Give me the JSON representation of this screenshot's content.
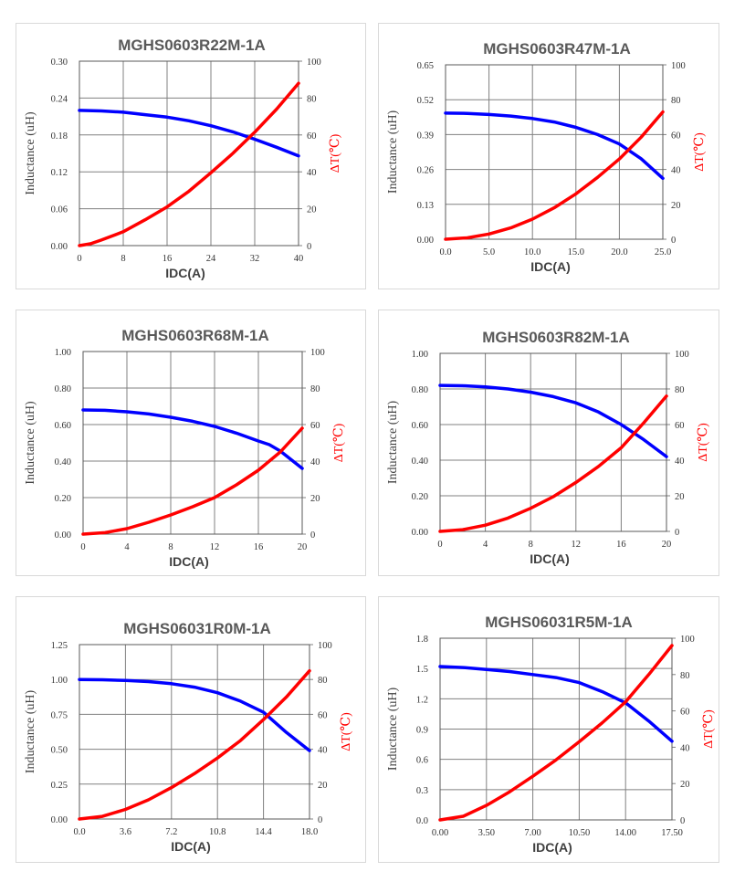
{
  "chart_data": [
    {
      "type": "line",
      "title": "MGHS0603R22M-1A",
      "xlabel": "IDC(A)",
      "ylabel": "Inductance (uH)",
      "y2label": "ΔT(℃)",
      "xlim": [
        0,
        40
      ],
      "x_ticks": [
        "0",
        "8",
        "16",
        "24",
        "32",
        "40"
      ],
      "ylim": [
        0,
        0.3
      ],
      "y_ticks": [
        "0.00",
        "0.06",
        "0.12",
        "0.18",
        "0.24",
        "0.30"
      ],
      "y2lim": [
        0,
        100
      ],
      "y2_ticks": [
        "0",
        "20",
        "40",
        "60",
        "80",
        "100"
      ],
      "series": [
        {
          "name": "Inductance",
          "axis": "left",
          "color": "#0000ff",
          "x": [
            0,
            4,
            8,
            12,
            16,
            20,
            24,
            28,
            32,
            36,
            40
          ],
          "y": [
            0.22,
            0.219,
            0.217,
            0.213,
            0.209,
            0.203,
            0.195,
            0.185,
            0.173,
            0.16,
            0.146
          ]
        },
        {
          "name": "ΔT",
          "axis": "right",
          "color": "#ff0000",
          "x": [
            0,
            2,
            4,
            8,
            12,
            16,
            20,
            24,
            28,
            32,
            36,
            40
          ],
          "y": [
            0,
            1,
            3,
            7.5,
            14,
            21,
            29.5,
            39.5,
            50,
            61.5,
            74,
            88
          ]
        }
      ]
    },
    {
      "type": "line",
      "title": "MGHS0603R47M-1A",
      "xlabel": "IDC(A)",
      "ylabel": "Inductance (uH)",
      "y2label": "ΔT(℃)",
      "xlim": [
        0,
        25
      ],
      "x_ticks": [
        "0.0",
        "5.0",
        "10.0",
        "15.0",
        "20.0",
        "25.0"
      ],
      "ylim": [
        0,
        0.65
      ],
      "y_ticks": [
        "0.00",
        "0.13",
        "0.26",
        "0.39",
        "0.52",
        "0.65"
      ],
      "y2lim": [
        0,
        100
      ],
      "y2_ticks": [
        "0",
        "20",
        "40",
        "60",
        "80",
        "100"
      ],
      "series": [
        {
          "name": "Inductance",
          "axis": "left",
          "color": "#0000ff",
          "x": [
            0,
            2.5,
            5,
            7.5,
            10,
            12.5,
            15,
            17.5,
            20,
            22.5,
            25
          ],
          "y": [
            0.47,
            0.469,
            0.465,
            0.459,
            0.45,
            0.437,
            0.417,
            0.39,
            0.355,
            0.3,
            0.227
          ]
        },
        {
          "name": "ΔT",
          "axis": "right",
          "color": "#ff0000",
          "x": [
            0,
            2.5,
            5,
            7.5,
            10,
            12.5,
            15,
            17.5,
            20,
            22.5,
            25
          ],
          "y": [
            0,
            0.8,
            3,
            6.5,
            11.5,
            18,
            26,
            35.5,
            46,
            58.5,
            73
          ]
        }
      ]
    },
    {
      "type": "line",
      "title": "MGHS0603R68M-1A",
      "xlabel": "IDC(A)",
      "ylabel": "Inductance (uH)",
      "y2label": "ΔT(℃)",
      "xlim": [
        0,
        20
      ],
      "x_ticks": [
        "0",
        "4",
        "8",
        "12",
        "16",
        "20"
      ],
      "ylim": [
        0,
        1
      ],
      "y_ticks": [
        "0.00",
        "0.20",
        "0.40",
        "0.60",
        "0.80",
        "1.00"
      ],
      "y2lim": [
        0,
        100
      ],
      "y2_ticks": [
        "0",
        "20",
        "40",
        "60",
        "80",
        "100"
      ],
      "series": [
        {
          "name": "Inductance",
          "axis": "left",
          "color": "#0000ff",
          "x": [
            0,
            2,
            4,
            6,
            8,
            10,
            12,
            14,
            16,
            17,
            18,
            20
          ],
          "y": [
            0.68,
            0.678,
            0.67,
            0.658,
            0.64,
            0.618,
            0.59,
            0.553,
            0.51,
            0.49,
            0.455,
            0.36
          ]
        },
        {
          "name": "ΔT",
          "axis": "right",
          "color": "#ff0000",
          "x": [
            0,
            2,
            4,
            6,
            8,
            10,
            12,
            14,
            16,
            18,
            20
          ],
          "y": [
            0,
            0.8,
            3,
            6.5,
            10.5,
            15,
            20,
            27,
            35,
            45,
            58
          ]
        }
      ]
    },
    {
      "type": "line",
      "title": "MGHS0603R82M-1A",
      "xlabel": "IDC(A)",
      "ylabel": "Inductance (uH)",
      "y2label": "ΔT(℃)",
      "xlim": [
        0,
        20
      ],
      "x_ticks": [
        "0",
        "4",
        "8",
        "12",
        "16",
        "20"
      ],
      "ylim": [
        0,
        1
      ],
      "y_ticks": [
        "0.00",
        "0.20",
        "0.40",
        "0.60",
        "0.80",
        "1.00"
      ],
      "y2lim": [
        0,
        100
      ],
      "y2_ticks": [
        "0",
        "20",
        "40",
        "60",
        "80",
        "100"
      ],
      "series": [
        {
          "name": "Inductance",
          "axis": "left",
          "color": "#0000ff",
          "x": [
            0,
            2,
            4,
            6,
            8,
            10,
            12,
            14,
            16,
            18,
            20
          ],
          "y": [
            0.82,
            0.818,
            0.812,
            0.8,
            0.782,
            0.757,
            0.722,
            0.67,
            0.6,
            0.515,
            0.42
          ]
        },
        {
          "name": "ΔT",
          "axis": "right",
          "color": "#ff0000",
          "x": [
            0,
            2,
            4,
            6,
            8,
            10,
            12,
            14,
            16,
            18,
            20
          ],
          "y": [
            0,
            1,
            3.5,
            7.5,
            13,
            19.5,
            27.5,
            36.5,
            47,
            61,
            76
          ]
        }
      ]
    },
    {
      "type": "line",
      "title": "MGHS06031R0M-1A",
      "xlabel": "IDC(A)",
      "ylabel": "Inductance (uH)",
      "y2label": "ΔT(℃)",
      "xlim": [
        0,
        18
      ],
      "x_ticks": [
        "0.0",
        "3.6",
        "7.2",
        "10.8",
        "14.4",
        "18.0"
      ],
      "ylim": [
        0,
        1.25
      ],
      "y_ticks": [
        "0.00",
        "0.25",
        "0.50",
        "0.75",
        "1.00",
        "1.25"
      ],
      "y2lim": [
        0,
        100
      ],
      "y2_ticks": [
        "0",
        "20",
        "40",
        "60",
        "80",
        "100"
      ],
      "series": [
        {
          "name": "Inductance",
          "axis": "left",
          "color": "#0000ff",
          "x": [
            0,
            1.8,
            3.6,
            5.4,
            7.2,
            9,
            10.8,
            12.6,
            14.4,
            16.2,
            18
          ],
          "y": [
            1.0,
            0.998,
            0.993,
            0.985,
            0.97,
            0.945,
            0.905,
            0.845,
            0.765,
            0.62,
            0.49
          ]
        },
        {
          "name": "ΔT",
          "axis": "right",
          "color": "#ff0000",
          "x": [
            0,
            1.8,
            3.6,
            5.4,
            7.2,
            9,
            10.8,
            12.6,
            14.4,
            16.2,
            18
          ],
          "y": [
            0,
            1.5,
            5.5,
            11,
            18,
            26,
            35,
            45,
            57,
            70,
            85
          ]
        }
      ]
    },
    {
      "type": "line",
      "title": "MGHS06031R5M-1A",
      "xlabel": "IDC(A)",
      "ylabel": "Inductance (uH)",
      "y2label": "ΔT(℃)",
      "xlim": [
        0,
        17.5
      ],
      "x_ticks": [
        "0.00",
        "3.50",
        "7.00",
        "10.50",
        "14.00",
        "17.50"
      ],
      "ylim": [
        0,
        1.8
      ],
      "y_ticks": [
        "0.0",
        "0.3",
        "0.6",
        "0.9",
        "1.2",
        "1.5",
        "1.8"
      ],
      "y2lim": [
        0,
        100
      ],
      "y2_ticks": [
        "0",
        "20",
        "40",
        "60",
        "80",
        "100"
      ],
      "series": [
        {
          "name": "Inductance",
          "axis": "left",
          "color": "#0000ff",
          "x": [
            0,
            1.75,
            3.5,
            5.25,
            7,
            8.75,
            10.5,
            12.25,
            14,
            15.75,
            17.5
          ],
          "y": [
            1.52,
            1.51,
            1.49,
            1.47,
            1.44,
            1.41,
            1.36,
            1.27,
            1.16,
            0.98,
            0.78
          ]
        },
        {
          "name": "ΔT",
          "axis": "right",
          "color": "#ff0000",
          "x": [
            0,
            1.75,
            3.5,
            5.25,
            7,
            8.75,
            10.5,
            12.25,
            14,
            15.75,
            17.5
          ],
          "y": [
            0,
            2,
            8,
            15.5,
            24,
            33,
            43,
            53.5,
            65,
            80,
            96
          ]
        }
      ]
    }
  ]
}
